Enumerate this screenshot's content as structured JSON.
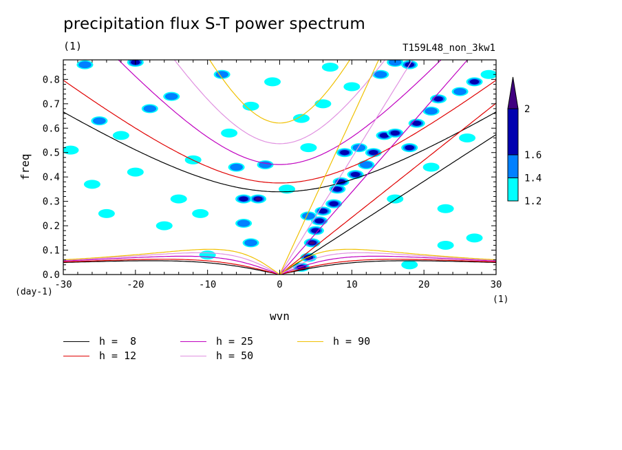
{
  "chart_data": {
    "type": "heatmap",
    "title": "precipitation flux S-T power spectrum",
    "subtitle": "(1)",
    "run_name": "T159L48_non_3kw1",
    "xlabel": "wvn",
    "ylabel": "freq",
    "x_unit_label": "(1)",
    "y_unit_label": "(day-1)",
    "xlim": [
      -30,
      30
    ],
    "ylim": [
      0,
      0.88
    ],
    "xticks": [
      -30,
      -20,
      -10,
      0,
      10,
      20,
      30
    ],
    "yticks": [
      0.0,
      0.1,
      0.2,
      0.3,
      0.4,
      0.5,
      0.6,
      0.7,
      0.8
    ],
    "colorbar": {
      "levels": [
        1.2,
        1.4,
        1.6,
        2
      ],
      "colors": [
        "#00ffff",
        "#0080ff",
        "#0000b0",
        "#400080"
      ],
      "labels": [
        "1.2",
        "1.4",
        "1.6",
        "2"
      ]
    },
    "dispersion_curves": [
      {
        "name": "h =  8",
        "h": 8,
        "color": "#000000"
      },
      {
        "name": "h = 12",
        "h": 12,
        "color": "#e00000"
      },
      {
        "name": "h = 25",
        "h": 25,
        "color": "#c000c0"
      },
      {
        "name": "h = 50",
        "h": 50,
        "color": "#e090e0"
      },
      {
        "name": "h = 90",
        "h": 90,
        "color": "#f0c000"
      }
    ],
    "blobs": [
      {
        "x": 3,
        "y": 0.03,
        "level": 3
      },
      {
        "x": 4,
        "y": 0.07,
        "level": 3
      },
      {
        "x": 4.5,
        "y": 0.13,
        "level": 3
      },
      {
        "x": 5,
        "y": 0.18,
        "level": 2
      },
      {
        "x": 5.5,
        "y": 0.22,
        "level": 2
      },
      {
        "x": 6,
        "y": 0.26,
        "level": 2
      },
      {
        "x": 7.5,
        "y": 0.29,
        "level": 2
      },
      {
        "x": 8,
        "y": 0.35,
        "level": 2
      },
      {
        "x": 8.5,
        "y": 0.38,
        "level": 2
      },
      {
        "x": 10.5,
        "y": 0.41,
        "level": 2
      },
      {
        "x": 12,
        "y": 0.45,
        "level": 1
      },
      {
        "x": 13,
        "y": 0.5,
        "level": 2
      },
      {
        "x": 14.5,
        "y": 0.57,
        "level": 2
      },
      {
        "x": 16,
        "y": 0.58,
        "level": 2
      },
      {
        "x": 18,
        "y": 0.52,
        "level": 2
      },
      {
        "x": 19,
        "y": 0.62,
        "level": 2
      },
      {
        "x": 21,
        "y": 0.67,
        "level": 1
      },
      {
        "x": 22,
        "y": 0.72,
        "level": 2
      },
      {
        "x": 25,
        "y": 0.75,
        "level": 1
      },
      {
        "x": 27,
        "y": 0.79,
        "level": 2
      },
      {
        "x": 18,
        "y": 0.86,
        "level": 2
      },
      {
        "x": 16,
        "y": 0.87,
        "level": 1
      },
      {
        "x": 14,
        "y": 0.82,
        "level": 1
      },
      {
        "x": 9,
        "y": 0.5,
        "level": 2
      },
      {
        "x": 11,
        "y": 0.52,
        "level": 1
      },
      {
        "x": 4,
        "y": 0.24,
        "level": 1
      },
      {
        "x": -3,
        "y": 0.31,
        "level": 3
      },
      {
        "x": -5,
        "y": 0.31,
        "level": 2
      },
      {
        "x": -5,
        "y": 0.21,
        "level": 1
      },
      {
        "x": -4,
        "y": 0.13,
        "level": 1
      },
      {
        "x": -10,
        "y": 0.08,
        "level": 0
      },
      {
        "x": -15,
        "y": 0.73,
        "level": 1
      },
      {
        "x": -20,
        "y": 0.87,
        "level": 2
      },
      {
        "x": -27,
        "y": 0.86,
        "level": 1
      },
      {
        "x": -25,
        "y": 0.63,
        "level": 1
      },
      {
        "x": -18,
        "y": 0.68,
        "level": 1
      },
      {
        "x": -8,
        "y": 0.82,
        "level": 1
      },
      {
        "x": -6,
        "y": 0.44,
        "level": 1
      },
      {
        "x": -1,
        "y": 0.79,
        "level": 0
      },
      {
        "x": 3,
        "y": 0.64,
        "level": 0
      },
      {
        "x": -20,
        "y": 0.42,
        "level": 0
      },
      {
        "x": -22,
        "y": 0.57,
        "level": 0
      },
      {
        "x": -26,
        "y": 0.37,
        "level": 0
      },
      {
        "x": -14,
        "y": 0.31,
        "level": 0
      },
      {
        "x": -11,
        "y": 0.25,
        "level": 0
      },
      {
        "x": -16,
        "y": 0.2,
        "level": 0
      },
      {
        "x": -2,
        "y": 0.45,
        "level": 1
      },
      {
        "x": 4,
        "y": 0.52,
        "level": 0
      },
      {
        "x": -7,
        "y": 0.58,
        "level": 0
      },
      {
        "x": 1,
        "y": 0.35,
        "level": 0
      },
      {
        "x": -29,
        "y": 0.51,
        "level": 0
      },
      {
        "x": 7,
        "y": 0.85,
        "level": 0
      },
      {
        "x": 21,
        "y": 0.44,
        "level": 0
      },
      {
        "x": 23,
        "y": 0.27,
        "level": 0
      },
      {
        "x": 27,
        "y": 0.15,
        "level": 0
      },
      {
        "x": 18,
        "y": 0.04,
        "level": 0
      },
      {
        "x": 23,
        "y": 0.12,
        "level": 0
      },
      {
        "x": 16,
        "y": 0.31,
        "level": 0
      },
      {
        "x": 26,
        "y": 0.56,
        "level": 0
      },
      {
        "x": 29,
        "y": 0.82,
        "level": 0
      },
      {
        "x": -12,
        "y": 0.47,
        "level": 0
      },
      {
        "x": -24,
        "y": 0.25,
        "level": 0
      },
      {
        "x": 6,
        "y": 0.7,
        "level": 0
      },
      {
        "x": -4,
        "y": 0.69,
        "level": 0
      },
      {
        "x": 10,
        "y": 0.77,
        "level": 0
      }
    ]
  },
  "legend_items": [
    {
      "label": "h =  8",
      "color": "#000000"
    },
    {
      "label": "h = 12",
      "color": "#e00000"
    },
    {
      "label": "h = 25",
      "color": "#c000c0"
    },
    {
      "label": "h = 50",
      "color": "#e090e0"
    },
    {
      "label": "h = 90",
      "color": "#f0c000"
    }
  ]
}
